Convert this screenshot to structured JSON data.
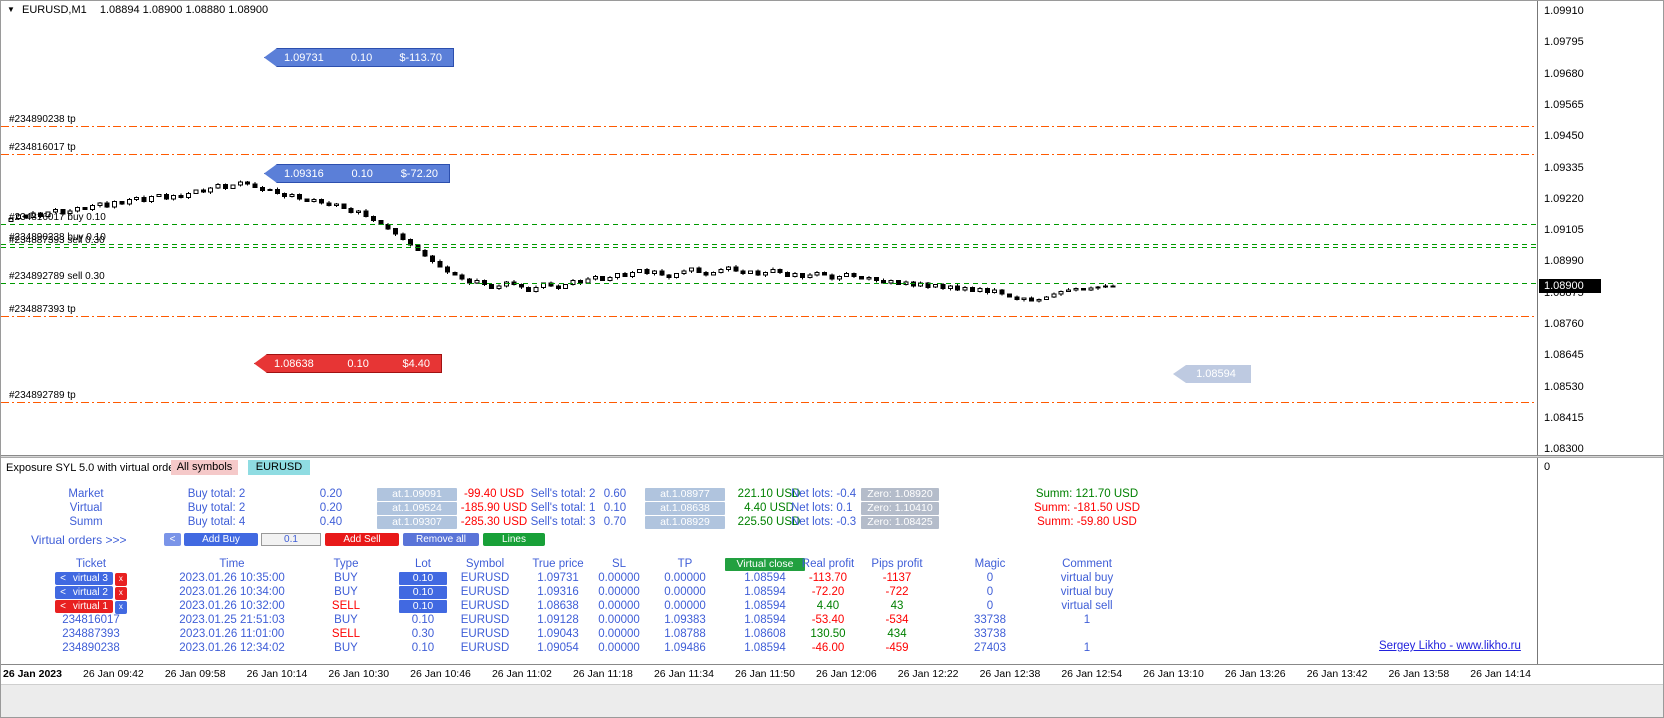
{
  "window": {
    "symbol_period": "EURUSD,M1",
    "ohlc": "1.08894 1.08900 1.08880 1.08900",
    "dropdown_icon": "symbol-dropdown"
  },
  "colors": {
    "buy_blue": "#4169e1",
    "sell_red": "#fe0000",
    "profit_green": "#008000",
    "tp_line_orange": "#ff5a00",
    "order_line_green": "#009900",
    "tag_buy": "#5b7fd8",
    "tag_sell": "#e73535",
    "tag_ghost": "#b9c6df"
  },
  "chart": {
    "current_price": "1.08900",
    "subwindow_axis_label": "0",
    "price_axis_labels": [
      "1.09910",
      "1.09795",
      "1.09680",
      "1.09565",
      "1.09450",
      "1.09335",
      "1.09220",
      "1.09105",
      "1.08990",
      "1.08875",
      "1.08760",
      "1.08645",
      "1.08530",
      "1.08415",
      "1.08300"
    ],
    "time_axis_labels": [
      "26 Jan 2023",
      "26 Jan 09:42",
      "26 Jan 09:58",
      "26 Jan 10:14",
      "26 Jan 10:30",
      "26 Jan 10:46",
      "26 Jan 11:02",
      "26 Jan 11:18",
      "26 Jan 11:34",
      "26 Jan 11:50",
      "26 Jan 12:06",
      "26 Jan 12:22",
      "26 Jan 12:38",
      "26 Jan 12:54",
      "26 Jan 13:10",
      "26 Jan 13:26",
      "26 Jan 13:42",
      "26 Jan 13:58",
      "26 Jan 14:14"
    ],
    "levels": [
      {
        "id": "234890238-tp",
        "label": "#234890238 tp",
        "price": 1.09486,
        "kind": "tp"
      },
      {
        "id": "234816017-tp",
        "label": "#234816017 tp",
        "price": 1.09383,
        "kind": "tp"
      },
      {
        "id": "234816017-buy",
        "label": "#234816017 buy 0.10",
        "price": 1.09128,
        "kind": "order"
      },
      {
        "id": "234890238-buy",
        "label": "#234890238 buy 0.10",
        "price": 1.09054,
        "kind": "order"
      },
      {
        "id": "234887393-sell",
        "label": "#234887393 sell 0.30",
        "price": 1.09043,
        "kind": "order"
      },
      {
        "id": "234892789-sell",
        "label": "#234892789 sell 0.30",
        "price": 1.08911,
        "kind": "order"
      },
      {
        "id": "234887393-tp",
        "label": "#234887393 tp",
        "price": 1.08788,
        "kind": "tp"
      },
      {
        "id": "234892789-tp",
        "label": "#234892789 tp",
        "price": 1.08474,
        "kind": "tp"
      }
    ],
    "order_tags": [
      {
        "id": "virtual-3",
        "price": "1.09731",
        "lot": "0.10",
        "profit": "$-113.70",
        "style": "buy"
      },
      {
        "id": "virtual-2",
        "price": "1.09316",
        "lot": "0.10",
        "profit": "$-72.20",
        "style": "buy"
      },
      {
        "id": "virtual-1",
        "price": "1.08638",
        "lot": "0.10",
        "profit": "$4.40",
        "style": "sell"
      },
      {
        "id": "virtual-close-price",
        "price": "1.08594",
        "lot": "",
        "profit": "",
        "style": "ghost"
      }
    ]
  },
  "chart_data": {
    "type": "candlestick",
    "symbol": "EURUSD",
    "timeframe": "M1",
    "x_start": "26 Jan 09:42",
    "x_end": "26 Jan 14:14",
    "y_axis_top": 1.0991,
    "y_axis_step": 0.00115,
    "closes": [
      1.09148,
      1.0916,
      1.09152,
      1.09168,
      1.09155,
      1.09172,
      1.0918,
      1.09165,
      1.09175,
      1.09188,
      1.0918,
      1.09195,
      1.09205,
      1.0919,
      1.0921,
      1.092,
      1.09218,
      1.09225,
      1.0921,
      1.09228,
      1.09235,
      1.0922,
      1.09232,
      1.09225,
      1.0924,
      1.09252,
      1.09245,
      1.0926,
      1.09272,
      1.09258,
      1.0927,
      1.09282,
      1.09275,
      1.09262,
      1.0925,
      1.09255,
      1.0924,
      1.09228,
      1.09235,
      1.0922,
      1.0921,
      1.09218,
      1.09205,
      1.09195,
      1.092,
      1.09185,
      1.0917,
      1.09175,
      1.09155,
      1.0914,
      1.09125,
      1.0911,
      1.0909,
      1.0907,
      1.0905,
      1.0903,
      1.0901,
      1.0899,
      1.0897,
      1.0895,
      1.0894,
      1.08925,
      1.0891,
      1.0892,
      1.08905,
      1.0889,
      1.089,
      1.08915,
      1.08905,
      1.08895,
      1.0888,
      1.08895,
      1.0891,
      1.089,
      1.0889,
      1.08905,
      1.0892,
      1.0891,
      1.08925,
      1.08935,
      1.0892,
      1.0893,
      1.08945,
      1.08935,
      1.0895,
      1.0896,
      1.08945,
      1.08955,
      1.0894,
      1.0893,
      1.08945,
      1.08955,
      1.08965,
      1.0895,
      1.0894,
      1.0895,
      1.0896,
      1.0897,
      1.08955,
      1.08945,
      1.08955,
      1.0894,
      1.0895,
      1.0896,
      1.0895,
      1.08935,
      1.08945,
      1.0893,
      1.0894,
      1.0895,
      1.0894,
      1.08925,
      1.08935,
      1.08945,
      1.08935,
      1.08925,
      1.0893,
      1.0892,
      1.0891,
      1.0892,
      1.08905,
      1.08915,
      1.089,
      1.0891,
      1.08895,
      1.08905,
      1.0889,
      1.089,
      1.08885,
      1.08895,
      1.0888,
      1.0889,
      1.08875,
      1.08885,
      1.0887,
      1.0886,
      1.0885,
      1.08855,
      1.08845,
      1.0885,
      1.0886,
      1.0887,
      1.0888,
      1.08885,
      1.0889,
      1.08885,
      1.08892,
      1.08896,
      1.089,
      1.089
    ]
  },
  "panel": {
    "title": "Exposure SYL 5.0 with virtual orders",
    "tabs": [
      {
        "id": "all-symbols",
        "label": "All symbols"
      },
      {
        "id": "eurusd",
        "label": "EURUSD"
      }
    ],
    "summary": [
      {
        "name": "Market",
        "buy_total": "Buy total: 2",
        "buy_lots": "0.20",
        "buy_at": "at.1.09091",
        "buy_profit": "-99.40 USD",
        "sell_total": "Sell's total: 2",
        "sell_lots": "0.60",
        "sell_at": "at.1.08977",
        "sell_profit": "221.10 USD",
        "net_lots": "Net lots: -0.4",
        "zero": "Zero: 1.08920",
        "summ": "Summ: 121.70 USD"
      },
      {
        "name": "Virtual",
        "buy_total": "Buy total: 2",
        "buy_lots": "0.20",
        "buy_at": "at.1.09524",
        "buy_profit": "-185.90 USD",
        "sell_total": "Sell's total: 1",
        "sell_lots": "0.10",
        "sell_at": "at.1.08638",
        "sell_profit": "4.40 USD",
        "net_lots": "Net lots: 0.1",
        "zero": "Zero: 1.10410",
        "summ": "Summ: -181.50 USD"
      },
      {
        "name": "Summ",
        "buy_total": "Buy total: 4",
        "buy_lots": "0.40",
        "buy_at": "at.1.09307",
        "buy_profit": "-285.30 USD",
        "sell_total": "Sell's total: 3",
        "sell_lots": "0.70",
        "sell_at": "at.1.08929",
        "sell_profit": "225.50 USD",
        "net_lots": "Net lots: -0.3",
        "zero": "Zero: 1.08425",
        "summ": "Summ: -59.80 USD"
      }
    ],
    "virtual_orders_label": "Virtual orders >>>",
    "buttons": {
      "collapse": "<",
      "add_buy": "Add Buy",
      "lot_input": "0.1",
      "add_sell": "Add Sell",
      "remove_all": "Remove all",
      "lines": "Lines"
    },
    "orders_table": {
      "headers": [
        "Ticket",
        "Time",
        "Type",
        "Lot",
        "Symbol",
        "True price",
        "SL",
        "TP",
        "Virtual close",
        "Real profit",
        "Pips profit",
        "Magic",
        "Comment"
      ],
      "rows": [
        {
          "ticket": "virtual 3",
          "ticket_kind": "virtual-buy",
          "ticket_arrow": "<",
          "ticket_close": "x",
          "time": "2023.01.26 10:35:00",
          "type": "BUY",
          "lot": "0.10",
          "lot_button": true,
          "symbol": "EURUSD",
          "true_price": "1.09731",
          "sl": "0.00000",
          "tp": "0.00000",
          "virtual_close": "1.08594",
          "real_profit": "-113.70",
          "pips_profit": "-1137",
          "magic": "0",
          "comment": "virtual buy"
        },
        {
          "ticket": "virtual 2",
          "ticket_kind": "virtual-buy",
          "ticket_arrow": "<",
          "ticket_close": "x",
          "time": "2023.01.26 10:34:00",
          "type": "BUY",
          "lot": "0.10",
          "lot_button": true,
          "symbol": "EURUSD",
          "true_price": "1.09316",
          "sl": "0.00000",
          "tp": "0.00000",
          "virtual_close": "1.08594",
          "real_profit": "-72.20",
          "pips_profit": "-722",
          "magic": "0",
          "comment": "virtual buy"
        },
        {
          "ticket": "virtual 1",
          "ticket_kind": "virtual-sell",
          "ticket_arrow": "<",
          "ticket_close": "x",
          "time": "2023.01.26 10:32:00",
          "type": "SELL",
          "lot": "0.10",
          "lot_button": true,
          "symbol": "EURUSD",
          "true_price": "1.08638",
          "sl": "0.00000",
          "tp": "0.00000",
          "virtual_close": "1.08594",
          "real_profit": "4.40",
          "pips_profit": "43",
          "magic": "0",
          "comment": "virtual sell"
        },
        {
          "ticket": "234816017",
          "ticket_kind": "plain",
          "time": "2023.01.25 21:51:03",
          "type": "BUY",
          "lot": "0.10",
          "lot_button": false,
          "symbol": "EURUSD",
          "true_price": "1.09128",
          "sl": "0.00000",
          "tp": "1.09383",
          "virtual_close": "1.08594",
          "real_profit": "-53.40",
          "pips_profit": "-534",
          "magic": "33738",
          "comment": "1"
        },
        {
          "ticket": "234887393",
          "ticket_kind": "plain",
          "time": "2023.01.26 11:01:00",
          "type": "SELL",
          "lot": "0.30",
          "lot_button": false,
          "symbol": "EURUSD",
          "true_price": "1.09043",
          "sl": "0.00000",
          "tp": "1.08788",
          "virtual_close": "1.08608",
          "real_profit": "130.50",
          "pips_profit": "434",
          "magic": "33738",
          "comment": ""
        },
        {
          "ticket": "234890238",
          "ticket_kind": "plain",
          "time": "2023.01.26 12:34:02",
          "type": "BUY",
          "lot": "0.10",
          "lot_button": false,
          "symbol": "EURUSD",
          "true_price": "1.09054",
          "sl": "0.00000",
          "tp": "1.09486",
          "virtual_close": "1.08594",
          "real_profit": "-46.00",
          "pips_profit": "-459",
          "magic": "27403",
          "comment": "1"
        }
      ]
    },
    "credit": "Sergey Likho - www.likho.ru"
  }
}
